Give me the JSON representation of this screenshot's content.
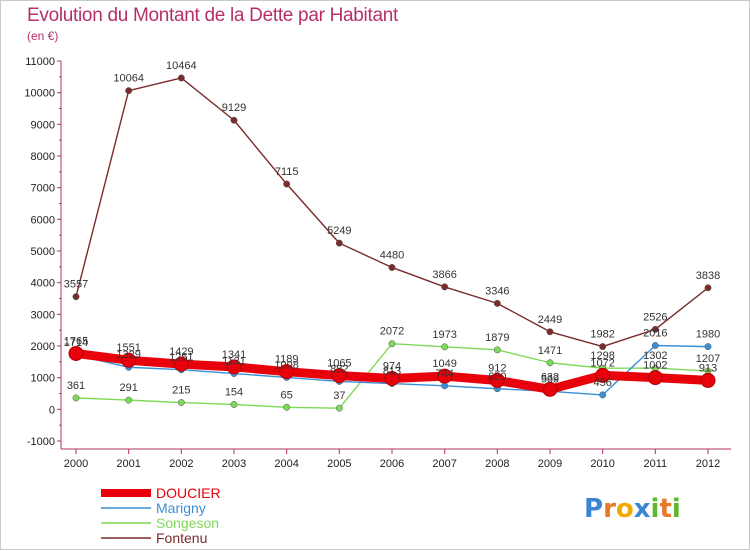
{
  "header": {
    "title": "Evolution du Montant de la Dette par Habitant",
    "subtitle": "(en €)"
  },
  "logo": {
    "letters": [
      "P",
      "r",
      "o",
      "x",
      "i",
      "t",
      "i"
    ],
    "colors": [
      "#3a86d4",
      "#e8782a",
      "#f2a900",
      "#3a86d4",
      "#5cb82e",
      "#e8782a",
      "#5cb82e"
    ]
  },
  "chart_data": {
    "type": "line",
    "title": "Evolution du Montant de la Dette par Habitant",
    "subtitle": "(en €)",
    "x": [
      "2000",
      "2001",
      "2002",
      "2003",
      "2004",
      "2005",
      "2006",
      "2007",
      "2008",
      "2009",
      "2010",
      "2011",
      "2012"
    ],
    "ylim": [
      -1000,
      11000
    ],
    "yticks": [
      -1000,
      0,
      1000,
      2000,
      3000,
      4000,
      5000,
      6000,
      7000,
      8000,
      9000,
      10000,
      11000
    ],
    "grid": false,
    "legend_position": "bottom-left",
    "series": [
      {
        "name": "DOUCIER",
        "color": "#e8000b",
        "values": [
          1765,
          1551,
          1429,
          1341,
          1189,
          1065,
          974,
          1049,
          912,
          632,
          1072,
          1002,
          913
        ],
        "labels": [
          "1765",
          "1551",
          "1429",
          "1341",
          "1189",
          "1065",
          "974",
          "1049",
          "912",
          "632",
          "1072",
          "1002",
          "913"
        ]
      },
      {
        "name": "Marigny",
        "color": "#3a8fd5",
        "values": [
          1714,
          1329,
          1251,
          1131,
          1008,
          882,
          813,
          744,
          650,
          569,
          456,
          2016,
          1980
        ],
        "labels": [
          "1714",
          "1329",
          "1251",
          "1131",
          "1008",
          "882",
          "813",
          "744",
          "650",
          "569",
          "456",
          "2016",
          "1980"
        ]
      },
      {
        "name": "Songeson",
        "color": "#7ed957",
        "values": [
          361,
          291,
          215,
          154,
          65,
          37,
          2072,
          1973,
          1879,
          1471,
          1298,
          1302,
          1207
        ],
        "labels": [
          "361",
          "291",
          "215",
          "154",
          "65",
          "37",
          "2072",
          "1973",
          "1879",
          "1471",
          "1298",
          "1302",
          "1207"
        ]
      },
      {
        "name": "Fontenu",
        "color": "#7a2b2b",
        "values": [
          3557,
          10064,
          10464,
          9129,
          7115,
          5249,
          4480,
          3866,
          3346,
          2449,
          1982,
          2526,
          3838
        ],
        "labels": [
          "3557",
          "10064",
          "10464",
          "9129",
          "7115",
          "5249",
          "4480",
          "3866",
          "3346",
          "2449",
          "1982",
          "2526",
          "3838"
        ]
      }
    ]
  }
}
